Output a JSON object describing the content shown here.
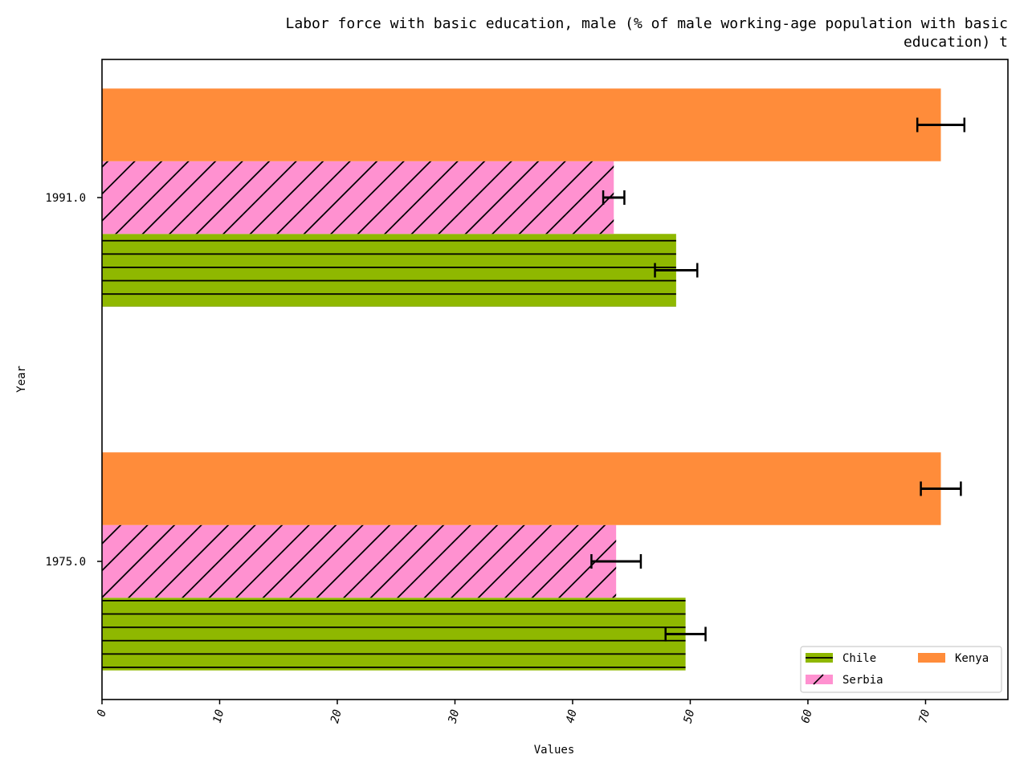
{
  "chart_data": {
    "type": "bar",
    "orientation": "horizontal",
    "title_lines": [
      "Labor force with basic education, male (% of male working-age population with basic",
      "education) t"
    ],
    "xlabel": "Values",
    "ylabel": "Year",
    "xlim": [
      0,
      77
    ],
    "x_ticks": [
      0,
      10,
      20,
      30,
      40,
      50,
      60,
      70
    ],
    "categories": [
      "1975.0",
      "1991.0"
    ],
    "series": [
      {
        "name": "Chile",
        "color": "#8fb800",
        "hatch": "horizontal",
        "values": [
          49.6,
          48.8
        ],
        "errors": [
          1.7,
          1.8
        ]
      },
      {
        "name": "Serbia",
        "color": "#ff91d0",
        "hatch": "diagonal",
        "values": [
          43.7,
          43.5
        ],
        "errors": [
          2.1,
          0.9
        ]
      },
      {
        "name": "Kenya",
        "color": "#ff8c3a",
        "hatch": "none",
        "values": [
          71.3,
          71.3
        ],
        "errors": [
          1.7,
          2.0
        ]
      }
    ],
    "legend": {
      "position": "bottom-right",
      "columns": 2
    },
    "grid": false
  }
}
